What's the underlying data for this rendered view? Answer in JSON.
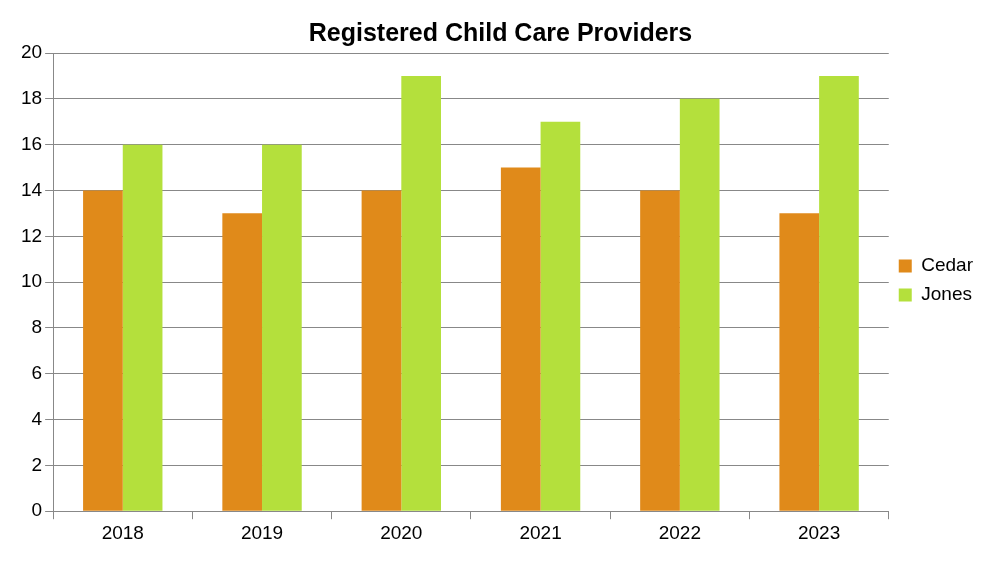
{
  "chart_data": {
    "type": "bar",
    "title": "Registered Child Care Providers",
    "categories": [
      "2018",
      "2019",
      "2020",
      "2021",
      "2022",
      "2023"
    ],
    "series": [
      {
        "name": "Cedar",
        "color": "#e08a1a",
        "values": [
          14,
          13,
          14,
          15,
          14,
          13
        ]
      },
      {
        "name": "Jones",
        "color": "#b4e03c",
        "values": [
          16,
          16,
          19,
          17,
          18,
          19
        ]
      }
    ],
    "ylim": [
      0,
      20
    ],
    "yticks": [
      0,
      2,
      4,
      6,
      8,
      10,
      12,
      14,
      16,
      18,
      20
    ],
    "grid": "y",
    "legend": "right"
  }
}
